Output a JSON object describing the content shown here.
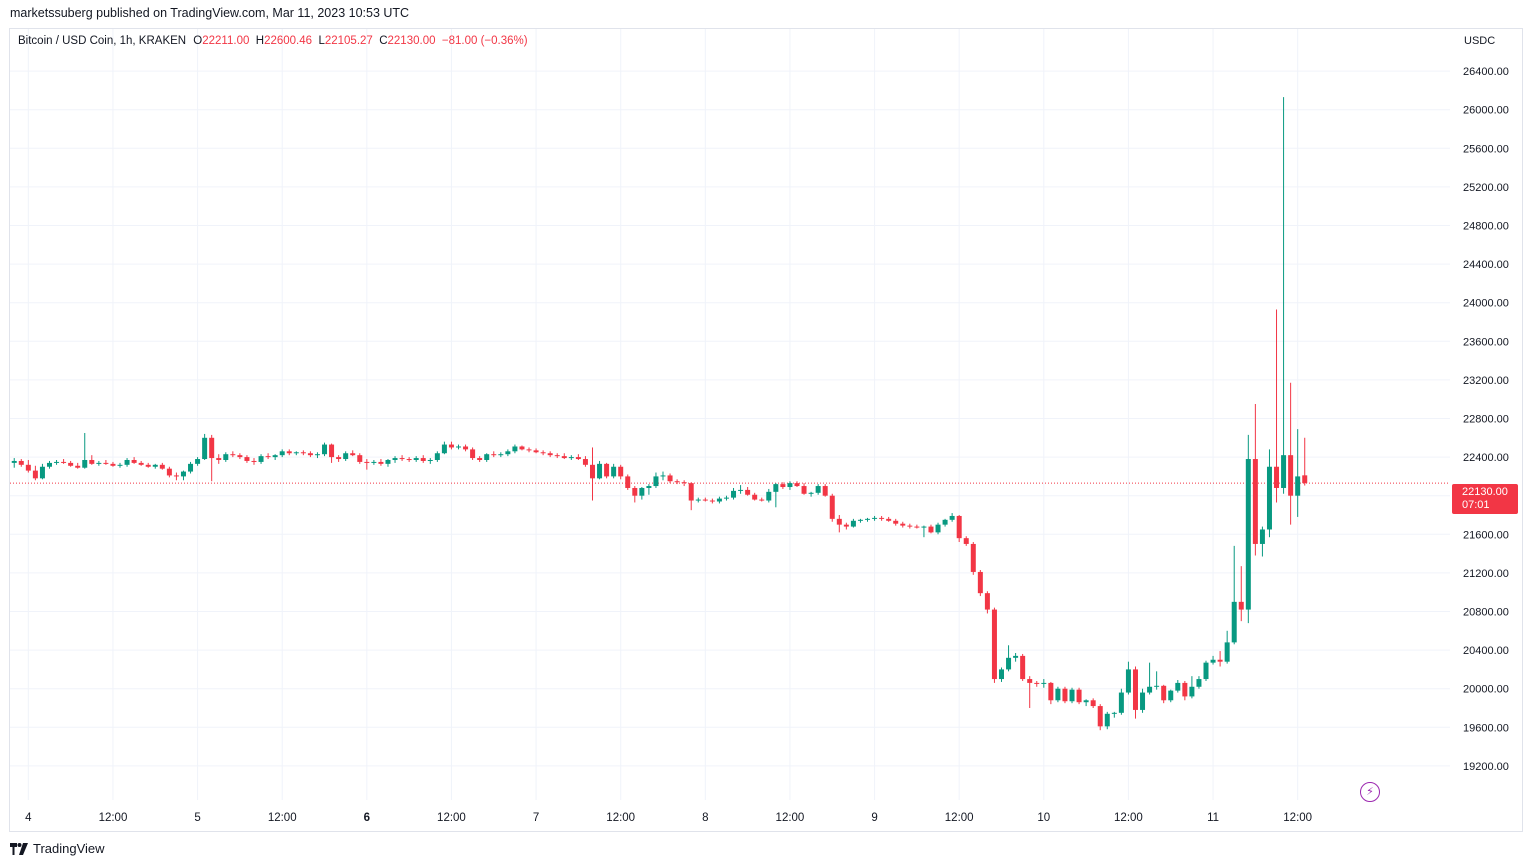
{
  "publisher_line": "marketssuberg published on TradingView.com, Mar 11, 2023 10:53 UTC",
  "legend": {
    "symbol": "Bitcoin / USD Coin, 1h, KRAKEN",
    "o_label": "O",
    "o_value": "22211.00",
    "h_label": "H",
    "h_value": "22600.46",
    "l_label": "L",
    "l_value": "22105.27",
    "c_label": "C",
    "c_value": "22130.00",
    "change": "−81.00 (−0.36%)"
  },
  "price_axis": {
    "currency": "USDC"
  },
  "current_price": {
    "value": "22130.00",
    "countdown": "07:01"
  },
  "brand": {
    "name": "TradingView"
  },
  "colors": {
    "up": "#089981",
    "down": "#f23645",
    "grid": "#f0f3fa",
    "text": "#131722",
    "tag": "#f23645",
    "flash": "#9c27b0"
  },
  "icons": {
    "flash": "lightning-icon",
    "logo": "tradingview-logo-icon"
  },
  "chart_data": {
    "type": "candlestick",
    "interval": "1h",
    "ylim": [
      18900,
      26700
    ],
    "y_ticks": [
      19200,
      19600,
      20000,
      20400,
      20800,
      21200,
      21600,
      22000,
      22400,
      22800,
      23200,
      23600,
      24000,
      24400,
      24800,
      25200,
      25600,
      26000,
      26400
    ],
    "y_tick_labels": [
      "19200.00",
      "19600.00",
      "20000.00",
      "20400.00",
      "20800.00",
      "21200.00",
      "21600.00",
      "22000.00",
      "22400.00",
      "22800.00",
      "23200.00",
      "23600.00",
      "24000.00",
      "24400.00",
      "24800.00",
      "25200.00",
      "25600.00",
      "26000.00",
      "26400.00"
    ],
    "x_ticks": [
      {
        "label": "4",
        "hour": 0,
        "bold": false
      },
      {
        "label": "12:00",
        "hour": 12,
        "bold": false
      },
      {
        "label": "5",
        "hour": 24,
        "bold": false
      },
      {
        "label": "12:00",
        "hour": 36,
        "bold": false
      },
      {
        "label": "6",
        "hour": 48,
        "bold": true
      },
      {
        "label": "12:00",
        "hour": 60,
        "bold": false
      },
      {
        "label": "7",
        "hour": 72,
        "bold": false
      },
      {
        "label": "12:00",
        "hour": 84,
        "bold": false
      },
      {
        "label": "8",
        "hour": 96,
        "bold": false
      },
      {
        "label": "12:00",
        "hour": 108,
        "bold": false
      },
      {
        "label": "9",
        "hour": 120,
        "bold": false
      },
      {
        "label": "12:00",
        "hour": 132,
        "bold": false
      },
      {
        "label": "10",
        "hour": 144,
        "bold": false
      },
      {
        "label": "12:00",
        "hour": 156,
        "bold": false
      },
      {
        "label": "11",
        "hour": 168,
        "bold": false
      },
      {
        "label": "12:00",
        "hour": 180,
        "bold": false
      }
    ],
    "hour_range": [
      -2.6,
      201.6
    ],
    "first_hour": -2,
    "current_price": 22130,
    "ohlc": [
      [
        22340,
        22390,
        22290,
        22360
      ],
      [
        22360,
        22380,
        22300,
        22320
      ],
      [
        22320,
        22370,
        22240,
        22260
      ],
      [
        22260,
        22310,
        22160,
        22180
      ],
      [
        22180,
        22330,
        22170,
        22300
      ],
      [
        22300,
        22360,
        22280,
        22340
      ],
      [
        22340,
        22370,
        22320,
        22350
      ],
      [
        22350,
        22380,
        22330,
        22340
      ],
      [
        22340,
        22360,
        22300,
        22310
      ],
      [
        22310,
        22340,
        22280,
        22290
      ],
      [
        22290,
        22650,
        22280,
        22370
      ],
      [
        22370,
        22420,
        22320,
        22330
      ],
      [
        22330,
        22360,
        22310,
        22340
      ],
      [
        22340,
        22370,
        22320,
        22330
      ],
      [
        22330,
        22350,
        22300,
        22310
      ],
      [
        22310,
        22340,
        22290,
        22320
      ],
      [
        22320,
        22390,
        22300,
        22370
      ],
      [
        22370,
        22400,
        22330,
        22340
      ],
      [
        22340,
        22360,
        22310,
        22320
      ],
      [
        22320,
        22340,
        22290,
        22300
      ],
      [
        22300,
        22330,
        22280,
        22320
      ],
      [
        22320,
        22340,
        22270,
        22280
      ],
      [
        22280,
        22300,
        22190,
        22210
      ],
      [
        22210,
        22240,
        22160,
        22200
      ],
      [
        22200,
        22260,
        22160,
        22250
      ],
      [
        22250,
        22350,
        22230,
        22330
      ],
      [
        22330,
        22400,
        22310,
        22380
      ],
      [
        22380,
        22640,
        22370,
        22600
      ],
      [
        22600,
        22630,
        22150,
        22390
      ],
      [
        22390,
        22430,
        22330,
        22370
      ],
      [
        22370,
        22450,
        22350,
        22430
      ],
      [
        22430,
        22460,
        22400,
        22420
      ],
      [
        22420,
        22440,
        22380,
        22400
      ],
      [
        22400,
        22420,
        22340,
        22360
      ],
      [
        22360,
        22390,
        22320,
        22350
      ],
      [
        22350,
        22430,
        22330,
        22410
      ],
      [
        22410,
        22440,
        22380,
        22400
      ],
      [
        22400,
        22430,
        22370,
        22420
      ],
      [
        22420,
        22480,
        22400,
        22460
      ],
      [
        22460,
        22480,
        22420,
        22440
      ],
      [
        22440,
        22460,
        22420,
        22450
      ],
      [
        22450,
        22470,
        22420,
        22440
      ],
      [
        22440,
        22460,
        22400,
        22420
      ],
      [
        22420,
        22450,
        22390,
        22430
      ],
      [
        22430,
        22550,
        22410,
        22530
      ],
      [
        22530,
        22540,
        22340,
        22400
      ],
      [
        22400,
        22420,
        22350,
        22380
      ],
      [
        22380,
        22460,
        22360,
        22440
      ],
      [
        22440,
        22470,
        22410,
        22420
      ],
      [
        22420,
        22440,
        22330,
        22350
      ],
      [
        22350,
        22380,
        22270,
        22340
      ],
      [
        22340,
        22370,
        22320,
        22350
      ],
      [
        22350,
        22380,
        22310,
        22330
      ],
      [
        22330,
        22380,
        22300,
        22370
      ],
      [
        22370,
        22410,
        22340,
        22390
      ],
      [
        22390,
        22420,
        22360,
        22380
      ],
      [
        22380,
        22400,
        22350,
        22370
      ],
      [
        22370,
        22410,
        22350,
        22390
      ],
      [
        22390,
        22420,
        22340,
        22360
      ],
      [
        22360,
        22390,
        22330,
        22370
      ],
      [
        22370,
        22460,
        22350,
        22440
      ],
      [
        22440,
        22560,
        22430,
        22530
      ],
      [
        22530,
        22560,
        22480,
        22500
      ],
      [
        22500,
        22530,
        22480,
        22510
      ],
      [
        22510,
        22530,
        22460,
        22480
      ],
      [
        22480,
        22500,
        22370,
        22390
      ],
      [
        22390,
        22410,
        22350,
        22370
      ],
      [
        22370,
        22440,
        22350,
        22430
      ],
      [
        22430,
        22460,
        22400,
        22420
      ],
      [
        22420,
        22450,
        22400,
        22430
      ],
      [
        22430,
        22480,
        22410,
        22460
      ],
      [
        22460,
        22530,
        22440,
        22510
      ],
      [
        22510,
        22520,
        22470,
        22480
      ],
      [
        22480,
        22500,
        22450,
        22470
      ],
      [
        22470,
        22490,
        22440,
        22450
      ],
      [
        22450,
        22470,
        22420,
        22440
      ],
      [
        22440,
        22460,
        22400,
        22420
      ],
      [
        22420,
        22440,
        22390,
        22410
      ],
      [
        22410,
        22440,
        22380,
        22390
      ],
      [
        22390,
        22420,
        22370,
        22400
      ],
      [
        22400,
        22430,
        22370,
        22380
      ],
      [
        22380,
        22410,
        22300,
        22320
      ],
      [
        22320,
        22500,
        21950,
        22180
      ],
      [
        22180,
        22360,
        22170,
        22330
      ],
      [
        22330,
        22340,
        22180,
        22200
      ],
      [
        22200,
        22330,
        22180,
        22300
      ],
      [
        22300,
        22320,
        22170,
        22200
      ],
      [
        22200,
        22220,
        22060,
        22080
      ],
      [
        22080,
        22100,
        21930,
        22000
      ],
      [
        22000,
        22090,
        21960,
        22080
      ],
      [
        22080,
        22120,
        22010,
        22100
      ],
      [
        22100,
        22240,
        22080,
        22200
      ],
      [
        22200,
        22250,
        22160,
        22210
      ],
      [
        22210,
        22230,
        22130,
        22150
      ],
      [
        22150,
        22170,
        22120,
        22140
      ],
      [
        22140,
        22160,
        22100,
        22130
      ],
      [
        22130,
        22140,
        21850,
        21950
      ],
      [
        21950,
        21980,
        21930,
        21960
      ],
      [
        21960,
        21980,
        21940,
        21950
      ],
      [
        21950,
        21970,
        21920,
        21940
      ],
      [
        21940,
        21990,
        21920,
        21970
      ],
      [
        21970,
        22000,
        21950,
        21980
      ],
      [
        21980,
        22080,
        21960,
        22050
      ],
      [
        22050,
        22110,
        22020,
        22060
      ],
      [
        22060,
        22090,
        22000,
        22010
      ],
      [
        22010,
        22030,
        21950,
        21960
      ],
      [
        21960,
        21980,
        21940,
        21950
      ],
      [
        21950,
        22070,
        21930,
        22040
      ],
      [
        22040,
        22130,
        21880,
        22120
      ],
      [
        22120,
        22140,
        22070,
        22090
      ],
      [
        22090,
        22150,
        22060,
        22130
      ],
      [
        22130,
        22150,
        22090,
        22100
      ],
      [
        22100,
        22130,
        22010,
        22020
      ],
      [
        22020,
        22040,
        21990,
        22030
      ],
      [
        22030,
        22120,
        22010,
        22100
      ],
      [
        22100,
        22120,
        21990,
        22000
      ],
      [
        22000,
        22020,
        21730,
        21760
      ],
      [
        21760,
        21800,
        21620,
        21700
      ],
      [
        21700,
        21720,
        21650,
        21680
      ],
      [
        21680,
        21760,
        21670,
        21740
      ],
      [
        21740,
        21760,
        21720,
        21750
      ],
      [
        21750,
        21770,
        21730,
        21760
      ],
      [
        21760,
        21790,
        21740,
        21770
      ],
      [
        21770,
        21790,
        21740,
        21760
      ],
      [
        21760,
        21780,
        21730,
        21740
      ],
      [
        21740,
        21760,
        21690,
        21710
      ],
      [
        21710,
        21730,
        21670,
        21690
      ],
      [
        21690,
        21710,
        21660,
        21680
      ],
      [
        21680,
        21700,
        21660,
        21670
      ],
      [
        21670,
        21690,
        21570,
        21680
      ],
      [
        21680,
        21700,
        21610,
        21620
      ],
      [
        21620,
        21720,
        21600,
        21700
      ],
      [
        21700,
        21760,
        21680,
        21750
      ],
      [
        21750,
        21820,
        21730,
        21790
      ],
      [
        21790,
        21800,
        21520,
        21560
      ],
      [
        21560,
        21580,
        21480,
        21500
      ],
      [
        21500,
        21520,
        21180,
        21210
      ],
      [
        21210,
        21230,
        20960,
        20990
      ],
      [
        20990,
        21010,
        20780,
        20820
      ],
      [
        20820,
        20840,
        20060,
        20100
      ],
      [
        20100,
        20220,
        20070,
        20200
      ],
      [
        20200,
        20450,
        20180,
        20320
      ],
      [
        20320,
        20370,
        20280,
        20340
      ],
      [
        20340,
        20360,
        20080,
        20100
      ],
      [
        20100,
        20130,
        19800,
        20060
      ],
      [
        20060,
        20080,
        20020,
        20050
      ],
      [
        20050,
        20100,
        20010,
        20060
      ],
      [
        20060,
        20070,
        19840,
        19880
      ],
      [
        19880,
        20020,
        19860,
        20000
      ],
      [
        20000,
        20020,
        19850,
        19870
      ],
      [
        19870,
        20010,
        19850,
        19990
      ],
      [
        19990,
        20010,
        19840,
        19860
      ],
      [
        19860,
        19890,
        19820,
        19880
      ],
      [
        19880,
        19900,
        19800,
        19820
      ],
      [
        19820,
        19840,
        19570,
        19610
      ],
      [
        19610,
        19760,
        19580,
        19740
      ],
      [
        19740,
        19760,
        19700,
        19750
      ],
      [
        19750,
        20000,
        19730,
        19960
      ],
      [
        19960,
        20280,
        19940,
        20200
      ],
      [
        20200,
        20230,
        19690,
        19780
      ],
      [
        19780,
        20000,
        19750,
        19960
      ],
      [
        19960,
        20270,
        19940,
        20020
      ],
      [
        20020,
        20180,
        19990,
        20030
      ],
      [
        20030,
        20040,
        19850,
        19880
      ],
      [
        19880,
        19990,
        19860,
        19980
      ],
      [
        19980,
        20090,
        19960,
        20060
      ],
      [
        20060,
        20080,
        19880,
        19920
      ],
      [
        19920,
        20130,
        19900,
        20020
      ],
      [
        20020,
        20130,
        20000,
        20100
      ],
      [
        20100,
        20290,
        20080,
        20270
      ],
      [
        20270,
        20340,
        20250,
        20300
      ],
      [
        20300,
        20390,
        20230,
        20280
      ],
      [
        20280,
        20600,
        20260,
        20480
      ],
      [
        20480,
        21480,
        20460,
        20900
      ],
      [
        20900,
        21270,
        20700,
        20820
      ],
      [
        20820,
        22630,
        20680,
        22380
      ],
      [
        22380,
        22950,
        21380,
        21500
      ],
      [
        21500,
        21680,
        21370,
        21650
      ],
      [
        21650,
        22480,
        21570,
        22300
      ],
      [
        22300,
        23930,
        21930,
        22080
      ],
      [
        22080,
        26130,
        22020,
        22420
      ],
      [
        22420,
        23170,
        21700,
        22000
      ],
      [
        22000,
        22690,
        21780,
        22200
      ],
      [
        22211,
        22600.46,
        22105.27,
        22130
      ]
    ]
  }
}
